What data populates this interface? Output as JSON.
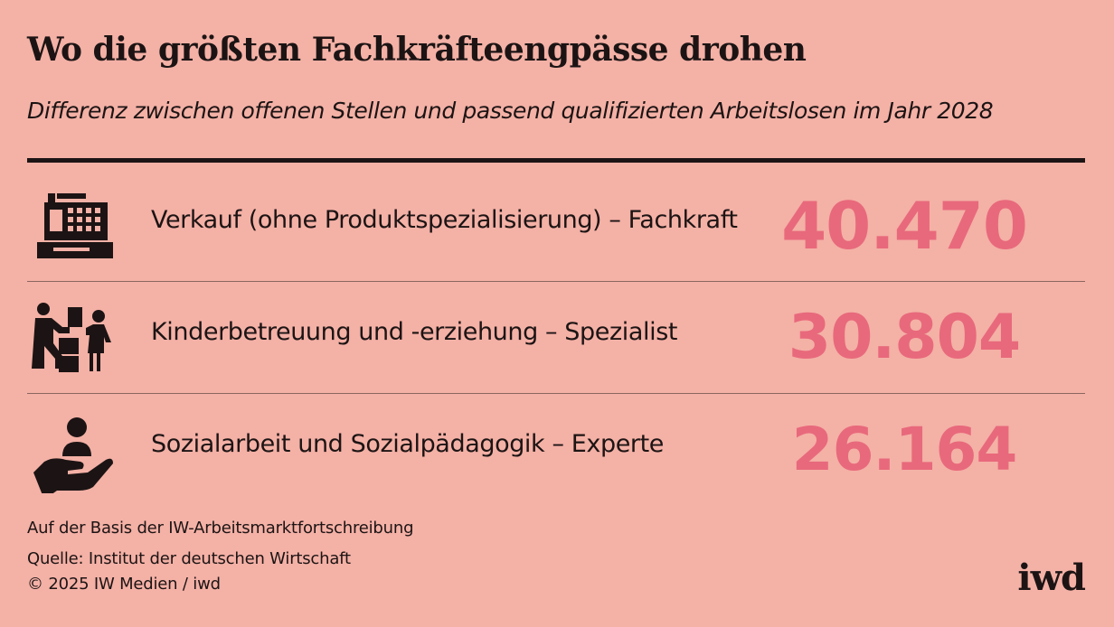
{
  "header": {
    "title": "Wo die größten Fachkräfteengpässe drohen",
    "subtitle": "Differenz zwischen offenen Stellen und passend qualifizierten Arbeitslosen im Jahr 2028"
  },
  "chart_data": {
    "type": "table",
    "title": "Wo die größten Fachkräfteengpässe drohen",
    "subtitle": "Differenz zwischen offenen Stellen und passend qualifizierten Arbeitslosen im Jahr 2028",
    "rows": [
      {
        "label": "Verkauf (ohne Produktspezialisierung) – Fachkraft",
        "value": 40470,
        "value_text": "40.470",
        "icon": "cash-register-icon"
      },
      {
        "label": "Kinderbetreuung und -erziehung – Spezialist",
        "value": 30804,
        "value_text": "30.804",
        "icon": "childcare-icon"
      },
      {
        "label": "Sozialarbeit und Sozialpädagogik – Experte",
        "value": 26164,
        "value_text": "26.164",
        "icon": "care-hand-icon"
      }
    ]
  },
  "colors": {
    "background": "#f4b1a6",
    "value": "#e8697c",
    "text": "#1c1414"
  },
  "footer": {
    "note": "Auf der Basis der IW-Arbeitsmarktfortschreibung",
    "source": "Quelle: Institut der deutschen Wirtschaft",
    "copyright": "© 2025 IW Medien / iwd",
    "logo": "iwd"
  }
}
